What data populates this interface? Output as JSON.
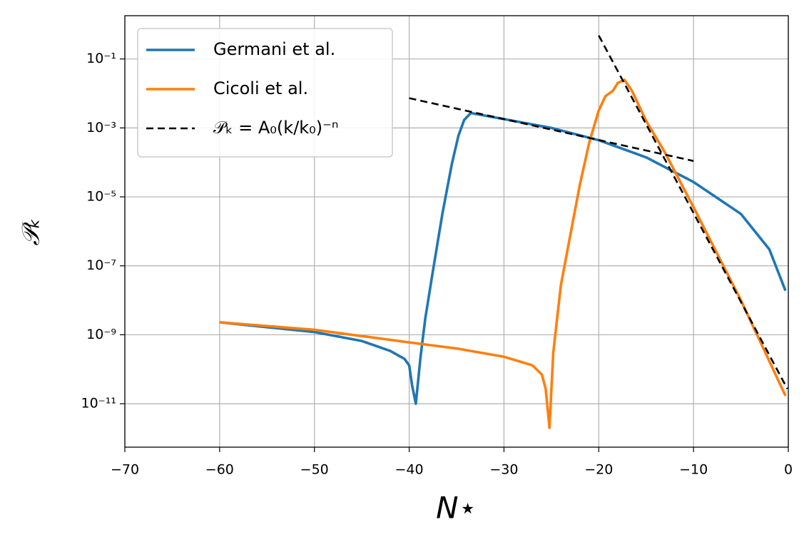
{
  "chart_data": {
    "type": "line",
    "xlabel": "N⋆",
    "ylabel": "𝒫ₖ",
    "xlim": [
      -70,
      0
    ],
    "ylim": [
      1.8,
      5.5e-13
    ],
    "yscale": "log",
    "grid": true,
    "legend": "upper left",
    "xticks": [
      {
        "value": -70,
        "label": "−70"
      },
      {
        "value": -60,
        "label": "−60"
      },
      {
        "value": -50,
        "label": "−50"
      },
      {
        "value": -40,
        "label": "−40"
      },
      {
        "value": -30,
        "label": "−30"
      },
      {
        "value": -20,
        "label": "−20"
      },
      {
        "value": -10,
        "label": "−10"
      },
      0
    ],
    "yticks": [
      {
        "value": 1e-11,
        "label": "10⁻¹¹"
      },
      {
        "value": 1e-09,
        "label": "10⁻⁹"
      },
      {
        "value": 1e-07,
        "label": "10⁻⁷"
      },
      {
        "value": 1e-05,
        "label": "10⁻⁵"
      },
      {
        "value": 0.001,
        "label": "10⁻³"
      },
      {
        "value": 0.1,
        "label": "10⁻¹"
      }
    ],
    "series": [
      {
        "name": "Germani et al.",
        "color": "#1f77b4",
        "linestyle": "-",
        "x": [
          -60,
          -50,
          -45,
          -42,
          -40.5,
          -40,
          -39.7,
          -39.3,
          -38.8,
          -38.3,
          -37.5,
          -36.5,
          -35.5,
          -34.8,
          -34.2,
          -33.5,
          -30,
          -25,
          -20,
          -15,
          -10,
          -5,
          -2,
          -0.3
        ],
        "values": [
          2.3e-09,
          1.2e-09,
          6.6e-10,
          3.4e-10,
          2e-10,
          1.3e-10,
          3.5e-11,
          1e-11,
          2.3e-10,
          3e-09,
          7e-08,
          3.2e-06,
          9e-05,
          0.0006,
          0.0017,
          0.0027,
          0.0018,
          0.001,
          0.00044,
          0.00014,
          2.7e-05,
          3.2e-06,
          3e-07,
          1.9e-08
        ]
      },
      {
        "name": "Cicoli et al.",
        "color": "#ff7f0e",
        "linestyle": "-",
        "x": [
          -60,
          -50,
          -40,
          -35,
          -30,
          -27,
          -26,
          -25.6,
          -25.2,
          -24.8,
          -24,
          -23,
          -22,
          -21,
          -20,
          -19.3,
          -18.5,
          -18,
          -17.3,
          -16.5,
          -15,
          -13,
          -10,
          -5,
          -0.3
        ],
        "values": [
          2.3e-09,
          1.4e-09,
          6e-10,
          4e-10,
          2.3e-10,
          1.3e-10,
          7e-11,
          2.7e-11,
          2e-12,
          3e-10,
          2.7e-08,
          7.8e-07,
          2.2e-05,
          0.00038,
          0.0032,
          0.0083,
          0.012,
          0.02,
          0.025,
          0.012,
          0.0016,
          0.00019,
          5e-06,
          1e-08,
          1.7e-11
        ]
      },
      {
        "name": "𝒫ₖ = A₀(k/k₀)⁻ⁿ",
        "color": "#000000",
        "linestyle": "--",
        "x": [
          -40,
          -10,
          null,
          -20,
          -0.1
        ],
        "values": [
          0.0073,
          0.00011,
          null,
          0.48,
          2.7e-11
        ]
      }
    ]
  }
}
